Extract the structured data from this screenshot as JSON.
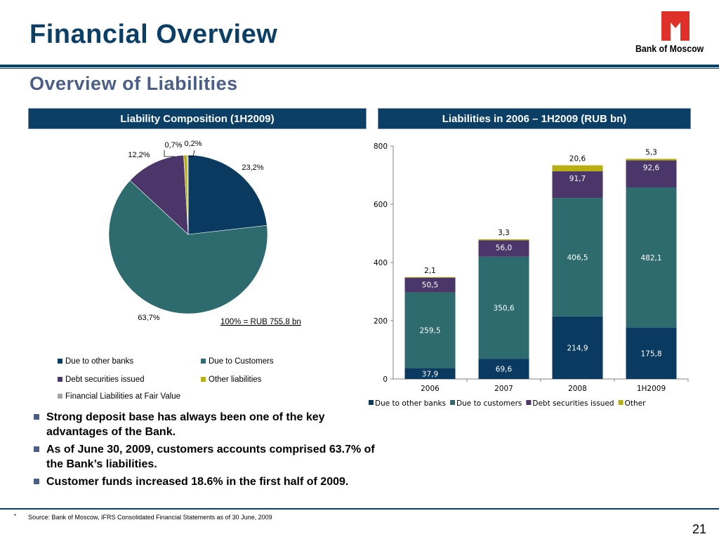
{
  "header": {
    "title": "Financial Overview",
    "subtitle": "Overview of Liabilities",
    "logo_text": "Bank of Moscow"
  },
  "colors": {
    "navy": "#0b3f66",
    "logo_red": "#e0302a",
    "due_to_banks": "#0a3a5f",
    "due_to_customers": "#2d6b6e",
    "debt_securities": "#4a3668",
    "other": "#b8b012",
    "fair_value": "#a5a5a5"
  },
  "left_panel": {
    "header": "Liability Composition (1H2009)",
    "total_note": "100% = RUB 755,8 bn",
    "legend": [
      {
        "label": "Due to other banks",
        "color": "#0a3a5f"
      },
      {
        "label": "Due to Customers",
        "color": "#2d6b6e"
      },
      {
        "label": "Debt securities issued",
        "color": "#4a3668"
      },
      {
        "label": "Other liabilities",
        "color": "#b8b012"
      },
      {
        "label": "Financial Liabilities at Fair Value",
        "color": "#a5a5a5"
      }
    ]
  },
  "right_panel": {
    "header": "Liabilities in 2006 – 1H2009 (RUB bn)"
  },
  "chart_data": [
    {
      "type": "pie",
      "categories": [
        "Due to other banks",
        "Due to Customers",
        "Debt securities issued",
        "Other liabilities",
        "Financial Liabilities at Fair Value"
      ],
      "values": [
        23.2,
        63.7,
        12.2,
        0.7,
        0.2
      ],
      "labels": [
        "23,2%",
        "63,7%",
        "12,2%",
        "0,7%",
        "0,2%"
      ]
    },
    {
      "type": "bar",
      "stacked": true,
      "categories": [
        "2006",
        "2007",
        "2008",
        "1H2009"
      ],
      "series": [
        {
          "name": "Due to other banks",
          "values": [
            37.9,
            69.6,
            214.9,
            175.8
          ],
          "labels": [
            "37,9",
            "69,6",
            "214,9",
            "175,8"
          ]
        },
        {
          "name": "Due to customers",
          "values": [
            259.5,
            350.6,
            406.5,
            482.1
          ],
          "labels": [
            "259,5",
            "350,6",
            "406,5",
            "482,1"
          ]
        },
        {
          "name": "Debt securities issued",
          "values": [
            50.5,
            56.0,
            91.7,
            92.6
          ],
          "labels": [
            "50,5",
            "56,0",
            "91,7",
            "92,6"
          ]
        },
        {
          "name": "Other",
          "values": [
            2.1,
            3.3,
            20.6,
            5.3
          ],
          "labels": [
            "2,1",
            "3,3",
            "20,6",
            "5,3"
          ]
        }
      ],
      "ylim": [
        0,
        800
      ],
      "yticks": [
        0,
        200,
        400,
        600,
        800
      ],
      "legend_position": "bottom"
    }
  ],
  "bullets": [
    "Strong deposit base has always been one of the key advantages of the Bank.",
    "As of June 30, 2009, customers accounts comprised 63.7% of the Bank’s liabilities.",
    "Customer funds increased 18.6% in the first half of 2009."
  ],
  "footer": {
    "star": "*",
    "source": "Source: Bank of Moscow, IFRS Consolidated Financial Statements as of 30 June, 2009",
    "page_number": "21"
  }
}
